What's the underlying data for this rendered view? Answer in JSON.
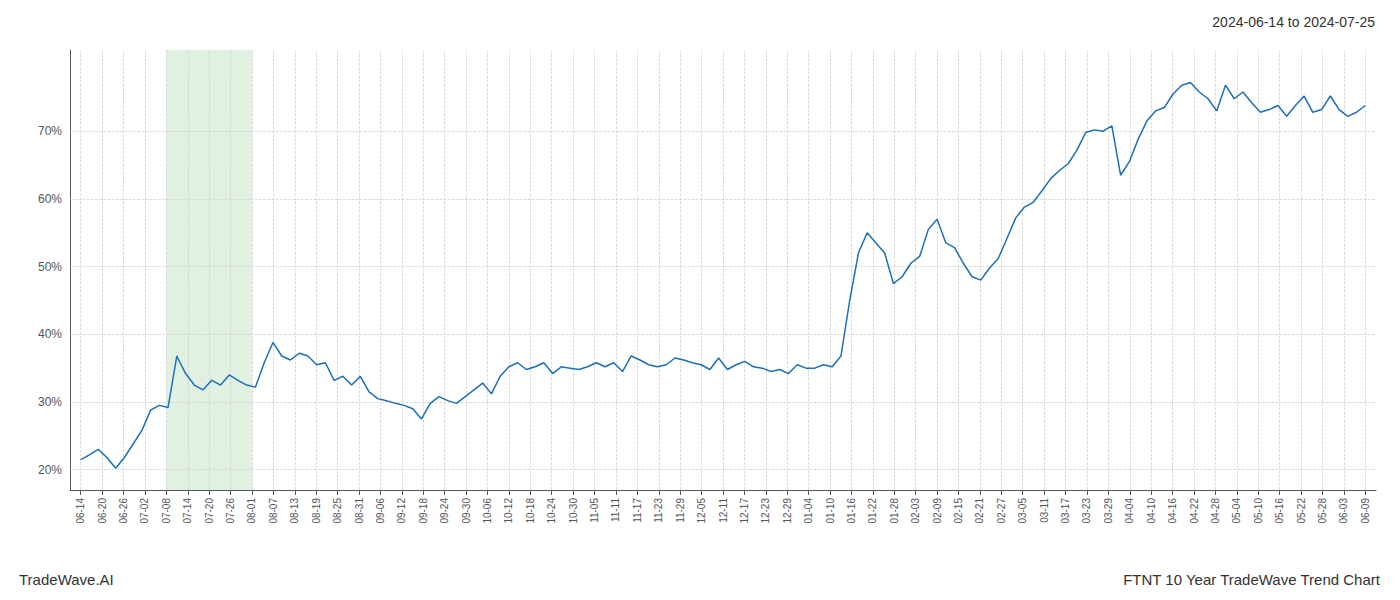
{
  "chart_data": {
    "type": "line",
    "title": "2024-06-14 to 2024-07-25",
    "annotations": [
      "TradeWave.AI",
      "FTNT 10 Year TradeWave Trend Chart"
    ],
    "color": "#1c6fba",
    "grid": true,
    "shade": {
      "from": 4,
      "to": 8,
      "color": "#c8e6c9"
    },
    "xlim": [
      -0.5,
      60.5
    ],
    "xticks": [
      {
        "value": 0,
        "label": "06-14"
      },
      {
        "value": 1,
        "label": "06-20"
      },
      {
        "value": 2,
        "label": "06-26"
      },
      {
        "value": 3,
        "label": "07-02"
      },
      {
        "value": 4,
        "label": "07-08"
      },
      {
        "value": 5,
        "label": "07-14"
      },
      {
        "value": 6,
        "label": "07-20"
      },
      {
        "value": 7,
        "label": "07-26"
      },
      {
        "value": 8,
        "label": "08-01"
      },
      {
        "value": 9,
        "label": "08-07"
      },
      {
        "value": 10,
        "label": "08-13"
      },
      {
        "value": 11,
        "label": "08-19"
      },
      {
        "value": 12,
        "label": "08-25"
      },
      {
        "value": 13,
        "label": "08-31"
      },
      {
        "value": 14,
        "label": "09-06"
      },
      {
        "value": 15,
        "label": "09-12"
      },
      {
        "value": 16,
        "label": "09-18"
      },
      {
        "value": 17,
        "label": "09-24"
      },
      {
        "value": 18,
        "label": "09-30"
      },
      {
        "value": 19,
        "label": "10-06"
      },
      {
        "value": 20,
        "label": "10-12"
      },
      {
        "value": 21,
        "label": "10-18"
      },
      {
        "value": 22,
        "label": "10-24"
      },
      {
        "value": 23,
        "label": "10-30"
      },
      {
        "value": 24,
        "label": "11-05"
      },
      {
        "value": 25,
        "label": "11-11"
      },
      {
        "value": 26,
        "label": "11-17"
      },
      {
        "value": 27,
        "label": "11-23"
      },
      {
        "value": 28,
        "label": "11-29"
      },
      {
        "value": 29,
        "label": "12-05"
      },
      {
        "value": 30,
        "label": "12-11"
      },
      {
        "value": 31,
        "label": "12-17"
      },
      {
        "value": 32,
        "label": "12-23"
      },
      {
        "value": 33,
        "label": "12-29"
      },
      {
        "value": 34,
        "label": "01-04"
      },
      {
        "value": 35,
        "label": "01-10"
      },
      {
        "value": 36,
        "label": "01-16"
      },
      {
        "value": 37,
        "label": "01-22"
      },
      {
        "value": 38,
        "label": "01-28"
      },
      {
        "value": 39,
        "label": "02-03"
      },
      {
        "value": 40,
        "label": "02-09"
      },
      {
        "value": 41,
        "label": "02-15"
      },
      {
        "value": 42,
        "label": "02-21"
      },
      {
        "value": 43,
        "label": "02-27"
      },
      {
        "value": 44,
        "label": "03-05"
      },
      {
        "value": 45,
        "label": "03-11"
      },
      {
        "value": 46,
        "label": "03-17"
      },
      {
        "value": 47,
        "label": "03-23"
      },
      {
        "value": 48,
        "label": "03-29"
      },
      {
        "value": 49,
        "label": "04-04"
      },
      {
        "value": 50,
        "label": "04-10"
      },
      {
        "value": 51,
        "label": "04-16"
      },
      {
        "value": 52,
        "label": "04-22"
      },
      {
        "value": 53,
        "label": "04-28"
      },
      {
        "value": 54,
        "label": "05-04"
      },
      {
        "value": 55,
        "label": "05-10"
      },
      {
        "value": 56,
        "label": "05-16"
      },
      {
        "value": 57,
        "label": "05-22"
      },
      {
        "value": 58,
        "label": "05-28"
      },
      {
        "value": 59,
        "label": "06-03"
      },
      {
        "value": 60,
        "label": "06-09"
      }
    ],
    "ylim": [
      17,
      82
    ],
    "yticks": [
      {
        "value": 20,
        "label": "20%"
      },
      {
        "value": 30,
        "label": "30%"
      },
      {
        "value": 40,
        "label": "40%"
      },
      {
        "value": 50,
        "label": "50%"
      },
      {
        "value": 60,
        "label": "60%"
      },
      {
        "value": 70,
        "label": "70%"
      }
    ],
    "x": [
      0,
      0.4082,
      0.8163,
      1.2245,
      1.6327,
      2.0408,
      2.449,
      2.8571,
      3.2653,
      3.6735,
      4.0816,
      4.4898,
      4.898,
      5.3061,
      5.7143,
      6.1224,
      6.5306,
      6.9388,
      7.3469,
      7.7551,
      8.1633,
      8.5714,
      8.9796,
      9.3878,
      9.7959,
      10.2041,
      10.6122,
      11.0204,
      11.4286,
      11.8367,
      12.2449,
      12.6531,
      13.0612,
      13.4694,
      13.8776,
      14.2857,
      14.6939,
      15.102,
      15.5102,
      15.9184,
      16.3265,
      16.7347,
      17.1429,
      17.551,
      17.9592,
      18.3673,
      18.7755,
      19.1837,
      19.5918,
      20,
      20.4082,
      20.8163,
      21.2245,
      21.6327,
      22.0408,
      22.449,
      22.8571,
      23.2653,
      23.6735,
      24.0816,
      24.4898,
      24.898,
      25.3061,
      25.7143,
      26.1224,
      26.5306,
      26.9388,
      27.3469,
      27.7551,
      28.1633,
      28.5714,
      28.9796,
      29.3878,
      29.7959,
      30.2041,
      30.6122,
      31.0204,
      31.4286,
      31.8367,
      32.2449,
      32.6531,
      33.0612,
      33.4694,
      33.8776,
      34.2857,
      34.6939,
      35.102,
      35.5102,
      35.9184,
      36.3265,
      36.7347,
      37.1429,
      37.551,
      37.9592,
      38.3673,
      38.7755,
      39.1837,
      39.5918,
      40,
      40.4082,
      40.8163,
      41.2245,
      41.6327,
      42.0408,
      42.449,
      42.8571,
      43.2653,
      43.6735,
      44.0816,
      44.4898,
      44.898,
      45.3061,
      45.7143,
      46.1224,
      46.5306,
      46.9388,
      47.3469,
      47.7551,
      48.1633,
      48.5714,
      48.9796,
      49.3878,
      49.7959,
      50.2041,
      50.6122,
      51.0204,
      51.4286,
      51.8367,
      52.2449,
      52.6531,
      53.0612,
      53.4694,
      53.8776,
      54.2857,
      54.6939,
      55.102,
      55.5102,
      55.9184,
      56.3265,
      56.7347,
      57.1429,
      57.551,
      57.9592,
      58.3673,
      58.7755,
      59.1837,
      59.5918,
      60
    ],
    "values": [
      21.5,
      22.2,
      23.0,
      21.8,
      20.2,
      21.8,
      23.8,
      25.8,
      28.8,
      29.5,
      29.2,
      36.8,
      34.2,
      32.5,
      31.8,
      33.2,
      32.5,
      34.0,
      33.2,
      32.5,
      32.2,
      35.8,
      38.8,
      36.8,
      36.2,
      37.2,
      36.8,
      35.5,
      35.8,
      33.2,
      33.8,
      32.5,
      33.8,
      31.5,
      30.5,
      30.2,
      29.8,
      29.5,
      29.0,
      27.5,
      29.8,
      30.8,
      30.2,
      29.8,
      30.8,
      31.8,
      32.8,
      31.2,
      33.8,
      35.2,
      35.8,
      34.8,
      35.2,
      35.8,
      34.2,
      35.2,
      35.0,
      34.8,
      35.2,
      35.8,
      35.2,
      35.8,
      34.5,
      36.8,
      36.2,
      35.5,
      35.2,
      35.5,
      36.5,
      36.2,
      35.8,
      35.5,
      34.8,
      36.5,
      34.8,
      35.5,
      36.0,
      35.2,
      35.0,
      34.5,
      34.8,
      34.2,
      35.5,
      35.0,
      35.0,
      35.5,
      35.2,
      36.8,
      45.0,
      52.0,
      55.0,
      53.5,
      52.0,
      47.5,
      48.5,
      50.5,
      51.5,
      55.5,
      57.0,
      53.5,
      52.8,
      50.5,
      48.5,
      48.0,
      49.8,
      51.2,
      54.2,
      57.2,
      58.8,
      59.5,
      61.2,
      63.0,
      64.2,
      65.2,
      67.2,
      69.8,
      70.2,
      70.0,
      70.8,
      63.5,
      65.5,
      68.8,
      71.5,
      73.0,
      73.5,
      75.5,
      76.8,
      77.2,
      75.8,
      74.8,
      73.0,
      76.8,
      74.8,
      75.8,
      74.2,
      72.8,
      73.2,
      73.8,
      72.2,
      73.8,
      75.2,
      72.8,
      73.2,
      75.2,
      73.2,
      72.2,
      72.8,
      73.8
    ]
  }
}
